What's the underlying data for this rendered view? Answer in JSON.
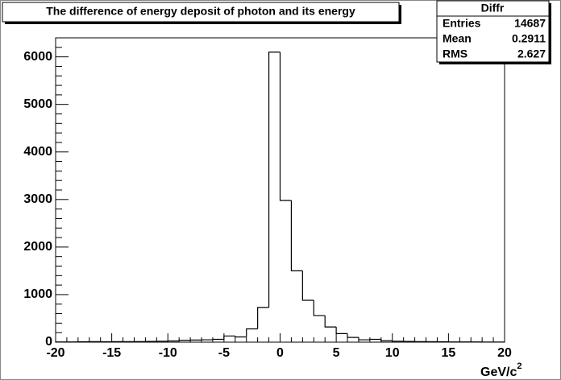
{
  "chart_data": {
    "type": "histogram",
    "title": "The difference of energy deposit of photon and its energy",
    "xlabel": {
      "text": "GeV/c",
      "superscript": "2"
    },
    "bins": [
      -20,
      -19,
      -18,
      -17,
      -16,
      -15,
      -14,
      -13,
      -12,
      -11,
      -10,
      -9,
      -8,
      -7,
      -6,
      -5,
      -4,
      -3,
      -2,
      -1,
      0,
      1,
      2,
      3,
      4,
      5,
      6,
      7,
      8,
      9,
      10,
      11,
      12,
      13,
      14,
      15,
      16,
      17,
      18,
      19,
      20
    ],
    "values": [
      5,
      5,
      8,
      10,
      8,
      10,
      12,
      12,
      15,
      20,
      25,
      40,
      45,
      50,
      60,
      130,
      110,
      280,
      730,
      6100,
      2980,
      1500,
      880,
      560,
      320,
      180,
      100,
      50,
      60,
      30,
      20,
      15,
      10,
      10,
      8,
      5,
      5,
      5,
      3,
      3
    ],
    "color": "#000000",
    "xlim": [
      -20,
      20
    ],
    "xticks": [
      -20,
      -15,
      -10,
      -5,
      0,
      5,
      10,
      15,
      20
    ],
    "ylim": [
      0,
      6400
    ],
    "yticks": [
      0,
      1000,
      2000,
      3000,
      4000,
      5000,
      6000
    ],
    "stats": {
      "name": "Diffr",
      "rows": [
        [
          "Entries",
          "14687"
        ],
        [
          "Mean",
          "0.2911"
        ],
        [
          "RMS",
          "2.627"
        ]
      ]
    }
  }
}
